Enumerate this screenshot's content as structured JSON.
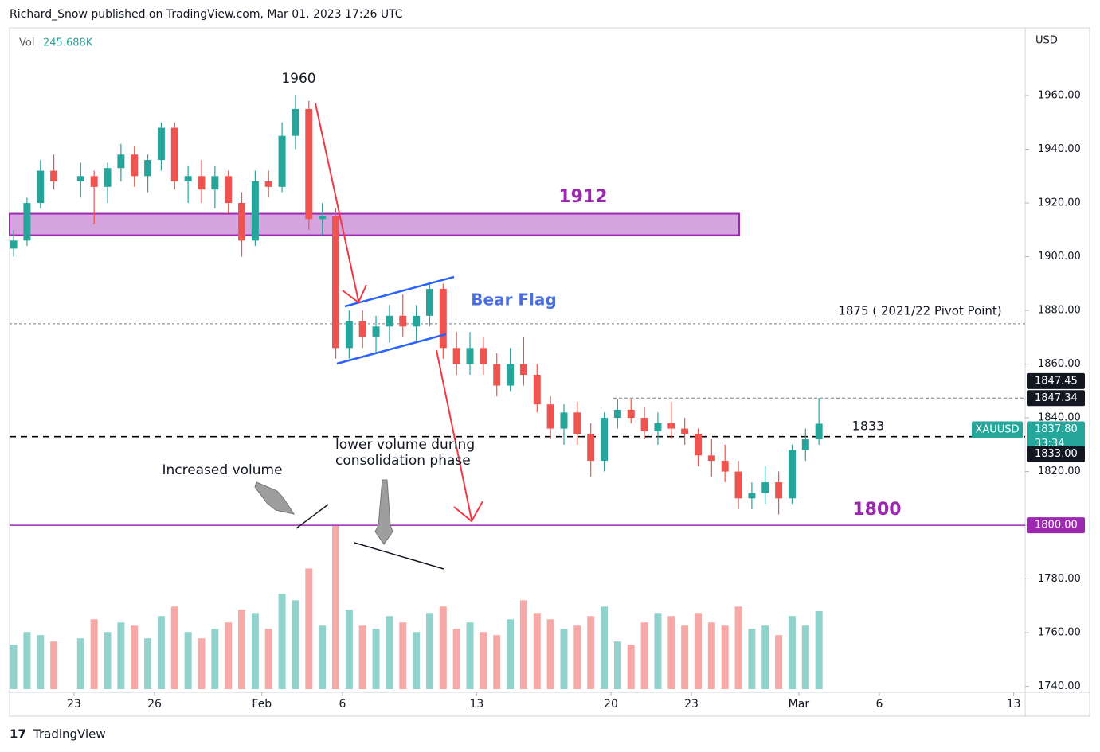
{
  "chart_data": {
    "type": "candlestick",
    "header": "Richard_Snow published on TradingView.com, Mar 01, 2023 17:26 UTC",
    "brand": "TradingView",
    "currency": "USD",
    "volume_title": "Vol",
    "volume_last": {
      "value": 245.688,
      "label": "245.688K"
    },
    "up_color": "#26a69a",
    "down_color": "#ef5350",
    "x": [
      -2.25,
      -1.75,
      -1.25,
      -0.75,
      0.25,
      0.75,
      1.25,
      1.75,
      2.25,
      2.75,
      3.25,
      3.75,
      4.25,
      4.75,
      5.25,
      5.75,
      6.25,
      6.75,
      7.25,
      7.75,
      8.25,
      8.75,
      9.25,
      9.75,
      10.25,
      10.75,
      11.25,
      11.75,
      12.25,
      12.75,
      13.25,
      13.75,
      14.25,
      14.75,
      15.25,
      15.75,
      16.25,
      16.75,
      17.25,
      17.75,
      18.25,
      18.75,
      19.25,
      19.75,
      20.25,
      20.75,
      21.25,
      21.75,
      22.25,
      22.75,
      23.25,
      23.75,
      24.25,
      24.75,
      25.25,
      25.75,
      26.25,
      26.75,
      27.25,
      27.75
    ],
    "open": [
      1903,
      1906,
      1920,
      1932,
      1928,
      1930,
      1926,
      1933,
      1938,
      1930,
      1936,
      1948,
      1928,
      1930,
      1925,
      1930,
      1920,
      1906,
      1928,
      1926,
      1945,
      1955,
      1914,
      1915,
      1866,
      1876,
      1870,
      1874,
      1878,
      1874,
      1878,
      1888,
      1866,
      1860,
      1866,
      1860,
      1852,
      1860,
      1856,
      1845,
      1836,
      1842,
      1834,
      1824,
      1840,
      1843,
      1840,
      1835,
      1838,
      1836,
      1834,
      1826,
      1824,
      1820,
      1810,
      1812,
      1816,
      1810,
      1828,
      1832
    ],
    "high": [
      1910,
      1922,
      1936,
      1938,
      1935,
      1932,
      1935,
      1942,
      1941,
      1938,
      1950,
      1950,
      1934,
      1936,
      1934,
      1932,
      1924,
      1932,
      1932,
      1950,
      1960,
      1958,
      1920,
      1918,
      1880,
      1880,
      1878,
      1882,
      1886,
      1882,
      1890,
      1890,
      1872,
      1872,
      1870,
      1864,
      1866,
      1870,
      1860,
      1848,
      1845,
      1846,
      1838,
      1842,
      1847,
      1847,
      1844,
      1842,
      1846,
      1840,
      1836,
      1832,
      1830,
      1824,
      1816,
      1822,
      1820,
      1830,
      1836,
      1847.45
    ],
    "low": [
      1900,
      1904,
      1918,
      1925,
      1922,
      1912,
      1920,
      1928,
      1926,
      1924,
      1932,
      1925,
      1920,
      1920,
      1918,
      1916,
      1900,
      1904,
      1922,
      1924,
      1940,
      1910,
      1908,
      1862,
      1862,
      1866,
      1864,
      1868,
      1870,
      1868,
      1874,
      1862,
      1856,
      1856,
      1856,
      1848,
      1850,
      1852,
      1842,
      1832,
      1830,
      1830,
      1818,
      1820,
      1836,
      1838,
      1832,
      1830,
      1832,
      1830,
      1822,
      1818,
      1816,
      1806,
      1806,
      1808,
      1804,
      1808,
      1824,
      1830
    ],
    "close": [
      1906,
      1920,
      1932,
      1928,
      1930,
      1926,
      1933,
      1938,
      1930,
      1936,
      1948,
      1928,
      1930,
      1925,
      1930,
      1920,
      1906,
      1928,
      1926,
      1945,
      1955,
      1914,
      1915,
      1866,
      1876,
      1870,
      1874,
      1878,
      1874,
      1878,
      1888,
      1866,
      1860,
      1866,
      1860,
      1852,
      1860,
      1856,
      1845,
      1836,
      1842,
      1834,
      1824,
      1840,
      1843,
      1840,
      1835,
      1838,
      1836,
      1834,
      1826,
      1824,
      1820,
      1810,
      1812,
      1816,
      1810,
      1828,
      1832,
      1837.8
    ],
    "volume": [
      140,
      180,
      170,
      150,
      160,
      220,
      180,
      210,
      200,
      160,
      230,
      260,
      180,
      160,
      190,
      210,
      250,
      240,
      190,
      300,
      280,
      380,
      200,
      514,
      250,
      200,
      190,
      230,
      210,
      180,
      240,
      260,
      190,
      210,
      180,
      170,
      220,
      280,
      240,
      220,
      190,
      200,
      230,
      260,
      150,
      140,
      210,
      240,
      230,
      200,
      240,
      210,
      200,
      260,
      190,
      200,
      170,
      230,
      200,
      245.688
    ],
    "xlim": [
      -2.4,
      35.43
    ],
    "xticks": [
      {
        "value": 0,
        "label": "23"
      },
      {
        "value": 3,
        "label": "26"
      },
      {
        "value": 7,
        "label": "Feb"
      },
      {
        "value": 10,
        "label": "6"
      },
      {
        "value": 15,
        "label": "13"
      },
      {
        "value": 20,
        "label": "20"
      },
      {
        "value": 23,
        "label": "23"
      },
      {
        "value": 27,
        "label": "Mar"
      },
      {
        "value": 30,
        "label": "6"
      },
      {
        "value": 35,
        "label": "13"
      }
    ],
    "ylim": [
      1737.8,
      1985.2
    ],
    "yticks": [
      {
        "value": 1740,
        "label": "1740.00"
      },
      {
        "value": 1760,
        "label": "1760.00"
      },
      {
        "value": 1780,
        "label": "1780.00"
      },
      {
        "value": 1800,
        "label": "1800.00"
      },
      {
        "value": 1820,
        "label": "1820.00"
      },
      {
        "value": 1840,
        "label": "1840.00"
      },
      {
        "value": 1860,
        "label": "1860.00"
      },
      {
        "value": 1880,
        "label": "1880.00"
      },
      {
        "value": 1900,
        "label": "1900.00"
      },
      {
        "value": 1920,
        "label": "1920.00"
      },
      {
        "value": 1940,
        "label": "1940.00"
      },
      {
        "value": 1960,
        "label": "1960.00"
      }
    ],
    "zone": {
      "low": 1908,
      "high": 1916,
      "color": "#ce93d8"
    },
    "levels": [
      {
        "value": 1875,
        "color": "#787b86",
        "style": "dotted"
      },
      {
        "value": 1847.34,
        "color": "#787b86",
        "style": "dashed-short"
      },
      {
        "value": 1833,
        "color": "#000000",
        "style": "dashed"
      },
      {
        "value": 1800,
        "color": "#9c27b0",
        "style": "solid"
      }
    ],
    "annotations": {
      "peak": "1960",
      "zone": "1912",
      "flag": "Bear Flag",
      "pivot": "1875 ( 2021/22 Pivot Point)",
      "support": "1833",
      "target": "1800",
      "increased": "Increased volume",
      "lower": [
        "lower volume during",
        "consolidation phase"
      ]
    },
    "symbol": "XAUUSD",
    "countdown": "33:34",
    "price_tags": [
      {
        "value": 1847.45,
        "label": "1847.45",
        "color": "#131722"
      },
      {
        "value": 1847.34,
        "label": "1847.34",
        "color": "#131722"
      },
      {
        "value": 1837.8,
        "label": "1837.80",
        "color": "#26a69a"
      },
      {
        "value": 1833,
        "label": "1833.00",
        "color": "#131722"
      },
      {
        "value": 1800,
        "label": "1800.00",
        "color": "#9c27b0"
      }
    ]
  }
}
